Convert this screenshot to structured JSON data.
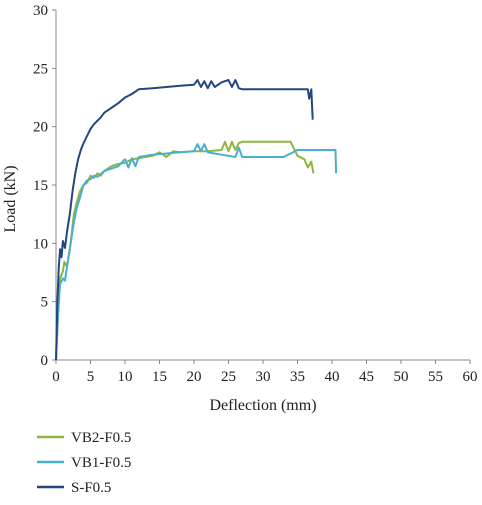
{
  "chart_data": {
    "type": "line",
    "title": "",
    "xlabel": "Deflection (mm)",
    "ylabel": "Load (kN)",
    "xlim": [
      0,
      60
    ],
    "ylim": [
      0,
      30
    ],
    "x_ticks": [
      "0",
      "5",
      "10",
      "15",
      "20",
      "25",
      "30",
      "35",
      "40",
      "45",
      "50",
      "55",
      "60"
    ],
    "y_ticks": [
      "0",
      "5",
      "10",
      "15",
      "20",
      "25",
      "30"
    ],
    "grid": false,
    "legend_position": "bottom-left",
    "series": [
      {
        "name": "VB2-F0.5",
        "color": "#8db63c",
        "points": [
          [
            0,
            0
          ],
          [
            0.3,
            4
          ],
          [
            0.6,
            7
          ],
          [
            1.0,
            7.6
          ],
          [
            1.2,
            8.4
          ],
          [
            1.6,
            8.0
          ],
          [
            2.0,
            9.5
          ],
          [
            2.3,
            11
          ],
          [
            2.6,
            12.5
          ],
          [
            3.0,
            13.5
          ],
          [
            3.5,
            14.5
          ],
          [
            4.0,
            15.0
          ],
          [
            4.5,
            15.2
          ],
          [
            5.0,
            15.8
          ],
          [
            5.5,
            15.6
          ],
          [
            6.0,
            16.0
          ],
          [
            6.5,
            15.8
          ],
          [
            7.0,
            16.2
          ],
          [
            8.0,
            16.6
          ],
          [
            9.0,
            16.8
          ],
          [
            10.0,
            16.9
          ],
          [
            11.0,
            17.2
          ],
          [
            12.0,
            17.3
          ],
          [
            14.0,
            17.5
          ],
          [
            15.0,
            17.8
          ],
          [
            16.0,
            17.4
          ],
          [
            17.0,
            17.9
          ],
          [
            18.0,
            17.8
          ],
          [
            20.0,
            17.9
          ],
          [
            22.0,
            17.9
          ],
          [
            24.0,
            18.0
          ],
          [
            24.5,
            18.7
          ],
          [
            25.0,
            17.9
          ],
          [
            25.5,
            18.7
          ],
          [
            26.0,
            18.0
          ],
          [
            26.5,
            18.6
          ],
          [
            27.0,
            18.7
          ],
          [
            30.0,
            18.7
          ],
          [
            33.0,
            18.7
          ],
          [
            34.0,
            18.7
          ],
          [
            35.0,
            17.5
          ],
          [
            36.0,
            17.2
          ],
          [
            36.5,
            16.5
          ],
          [
            37.0,
            17.0
          ],
          [
            37.3,
            16.0
          ]
        ]
      },
      {
        "name": "VB1-F0.5",
        "color": "#4aaed0",
        "points": [
          [
            0,
            0
          ],
          [
            0.3,
            4
          ],
          [
            0.6,
            6.5
          ],
          [
            1.0,
            7.0
          ],
          [
            1.3,
            6.8
          ],
          [
            1.6,
            8.0
          ],
          [
            2.0,
            9.5
          ],
          [
            2.5,
            11.5
          ],
          [
            3.0,
            13.0
          ],
          [
            3.5,
            14.0
          ],
          [
            4.0,
            15.0
          ],
          [
            4.5,
            15.4
          ],
          [
            5.0,
            15.5
          ],
          [
            5.5,
            15.8
          ],
          [
            6.0,
            15.7
          ],
          [
            7.0,
            16.2
          ],
          [
            8.0,
            16.4
          ],
          [
            9.0,
            16.6
          ],
          [
            10.0,
            17.2
          ],
          [
            10.5,
            16.5
          ],
          [
            11.0,
            17.3
          ],
          [
            11.5,
            16.6
          ],
          [
            12.0,
            17.4
          ],
          [
            14.0,
            17.6
          ],
          [
            16.0,
            17.7
          ],
          [
            18.0,
            17.8
          ],
          [
            20.0,
            17.9
          ],
          [
            20.5,
            18.5
          ],
          [
            21.0,
            17.9
          ],
          [
            21.5,
            18.5
          ],
          [
            22.0,
            17.8
          ],
          [
            24.0,
            17.6
          ],
          [
            26.0,
            17.4
          ],
          [
            26.5,
            18.2
          ],
          [
            27.0,
            17.4
          ],
          [
            30.0,
            17.4
          ],
          [
            33.0,
            17.4
          ],
          [
            35.0,
            18.0
          ],
          [
            38.0,
            18.0
          ],
          [
            40.5,
            18.0
          ],
          [
            40.6,
            16.0
          ]
        ]
      },
      {
        "name": "S-F0.5",
        "color": "#24467f",
        "points": [
          [
            0,
            0
          ],
          [
            0.2,
            5
          ],
          [
            0.4,
            8
          ],
          [
            0.6,
            9.5
          ],
          [
            0.8,
            8.8
          ],
          [
            1.0,
            10.2
          ],
          [
            1.3,
            9.6
          ],
          [
            1.6,
            11
          ],
          [
            2.0,
            12.5
          ],
          [
            2.4,
            14.5
          ],
          [
            2.8,
            16.0
          ],
          [
            3.2,
            17.2
          ],
          [
            3.6,
            18.0
          ],
          [
            4.0,
            18.6
          ],
          [
            4.5,
            19.2
          ],
          [
            5.0,
            19.8
          ],
          [
            5.5,
            20.2
          ],
          [
            6.0,
            20.5
          ],
          [
            6.5,
            20.8
          ],
          [
            7.0,
            21.2
          ],
          [
            8.0,
            21.6
          ],
          [
            9.0,
            22.0
          ],
          [
            10.0,
            22.5
          ],
          [
            11.0,
            22.8
          ],
          [
            12.0,
            23.2
          ],
          [
            14.0,
            23.3
          ],
          [
            16.0,
            23.4
          ],
          [
            18.0,
            23.5
          ],
          [
            20.0,
            23.6
          ],
          [
            20.5,
            24.0
          ],
          [
            21.0,
            23.4
          ],
          [
            21.5,
            23.9
          ],
          [
            22.0,
            23.3
          ],
          [
            22.5,
            23.9
          ],
          [
            23.0,
            23.4
          ],
          [
            24.0,
            23.8
          ],
          [
            25.0,
            24.0
          ],
          [
            25.5,
            23.4
          ],
          [
            26.0,
            24.0
          ],
          [
            26.5,
            23.3
          ],
          [
            27.0,
            23.2
          ],
          [
            30.0,
            23.2
          ],
          [
            34.0,
            23.2
          ],
          [
            36.5,
            23.2
          ],
          [
            36.7,
            22.4
          ],
          [
            37.0,
            23.2
          ],
          [
            37.2,
            20.6
          ]
        ]
      }
    ]
  }
}
